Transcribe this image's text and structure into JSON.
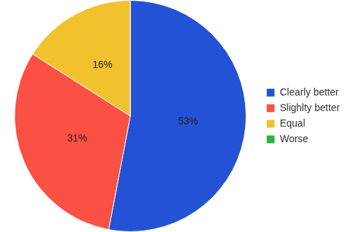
{
  "chart_data": {
    "type": "pie",
    "categories": [
      "Clearly better",
      "Slighlty better",
      "Equal",
      "Worse"
    ],
    "values": [
      53,
      31,
      16,
      0
    ],
    "value_labels": [
      "53%",
      "31%",
      "16%",
      null
    ],
    "colors": [
      "#2352d6",
      "#fb5044",
      "#f2c12e",
      "#2fb03b"
    ],
    "legend": "right",
    "data_labels": true
  }
}
